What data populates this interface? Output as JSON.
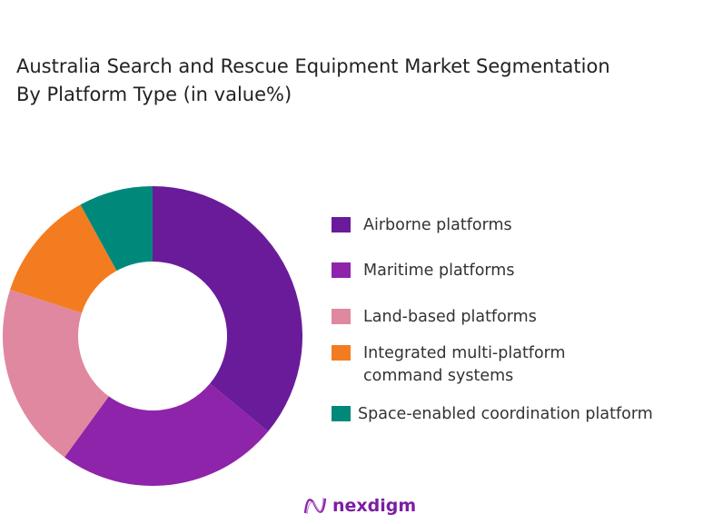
{
  "chart_data": {
    "type": "pie",
    "variant": "donut",
    "title_lines": [
      "Australia Search and Rescue Equipment Market  Segmentation",
      "By Platform Type (in value%)"
    ],
    "categories": [
      "Airborne platforms",
      "Maritime platforms",
      "Land-based platforms",
      "Integrated multi-platform command systems",
      "Space-enabled coordination platform"
    ],
    "legend_lines": [
      [
        "Airborne platforms"
      ],
      [
        "Maritime platforms"
      ],
      [
        "Land-based platforms"
      ],
      [
        "Integrated multi-platform",
        "command systems"
      ],
      [
        "Space-enabled coordination platform"
      ]
    ],
    "values": [
      36,
      24,
      20,
      12,
      8
    ],
    "colors": [
      "#6a1b9a",
      "#8e24aa",
      "#e0889f",
      "#f47c20",
      "#00897b"
    ],
    "legend_position": "right"
  },
  "brand": {
    "name": "nexdigm"
  }
}
